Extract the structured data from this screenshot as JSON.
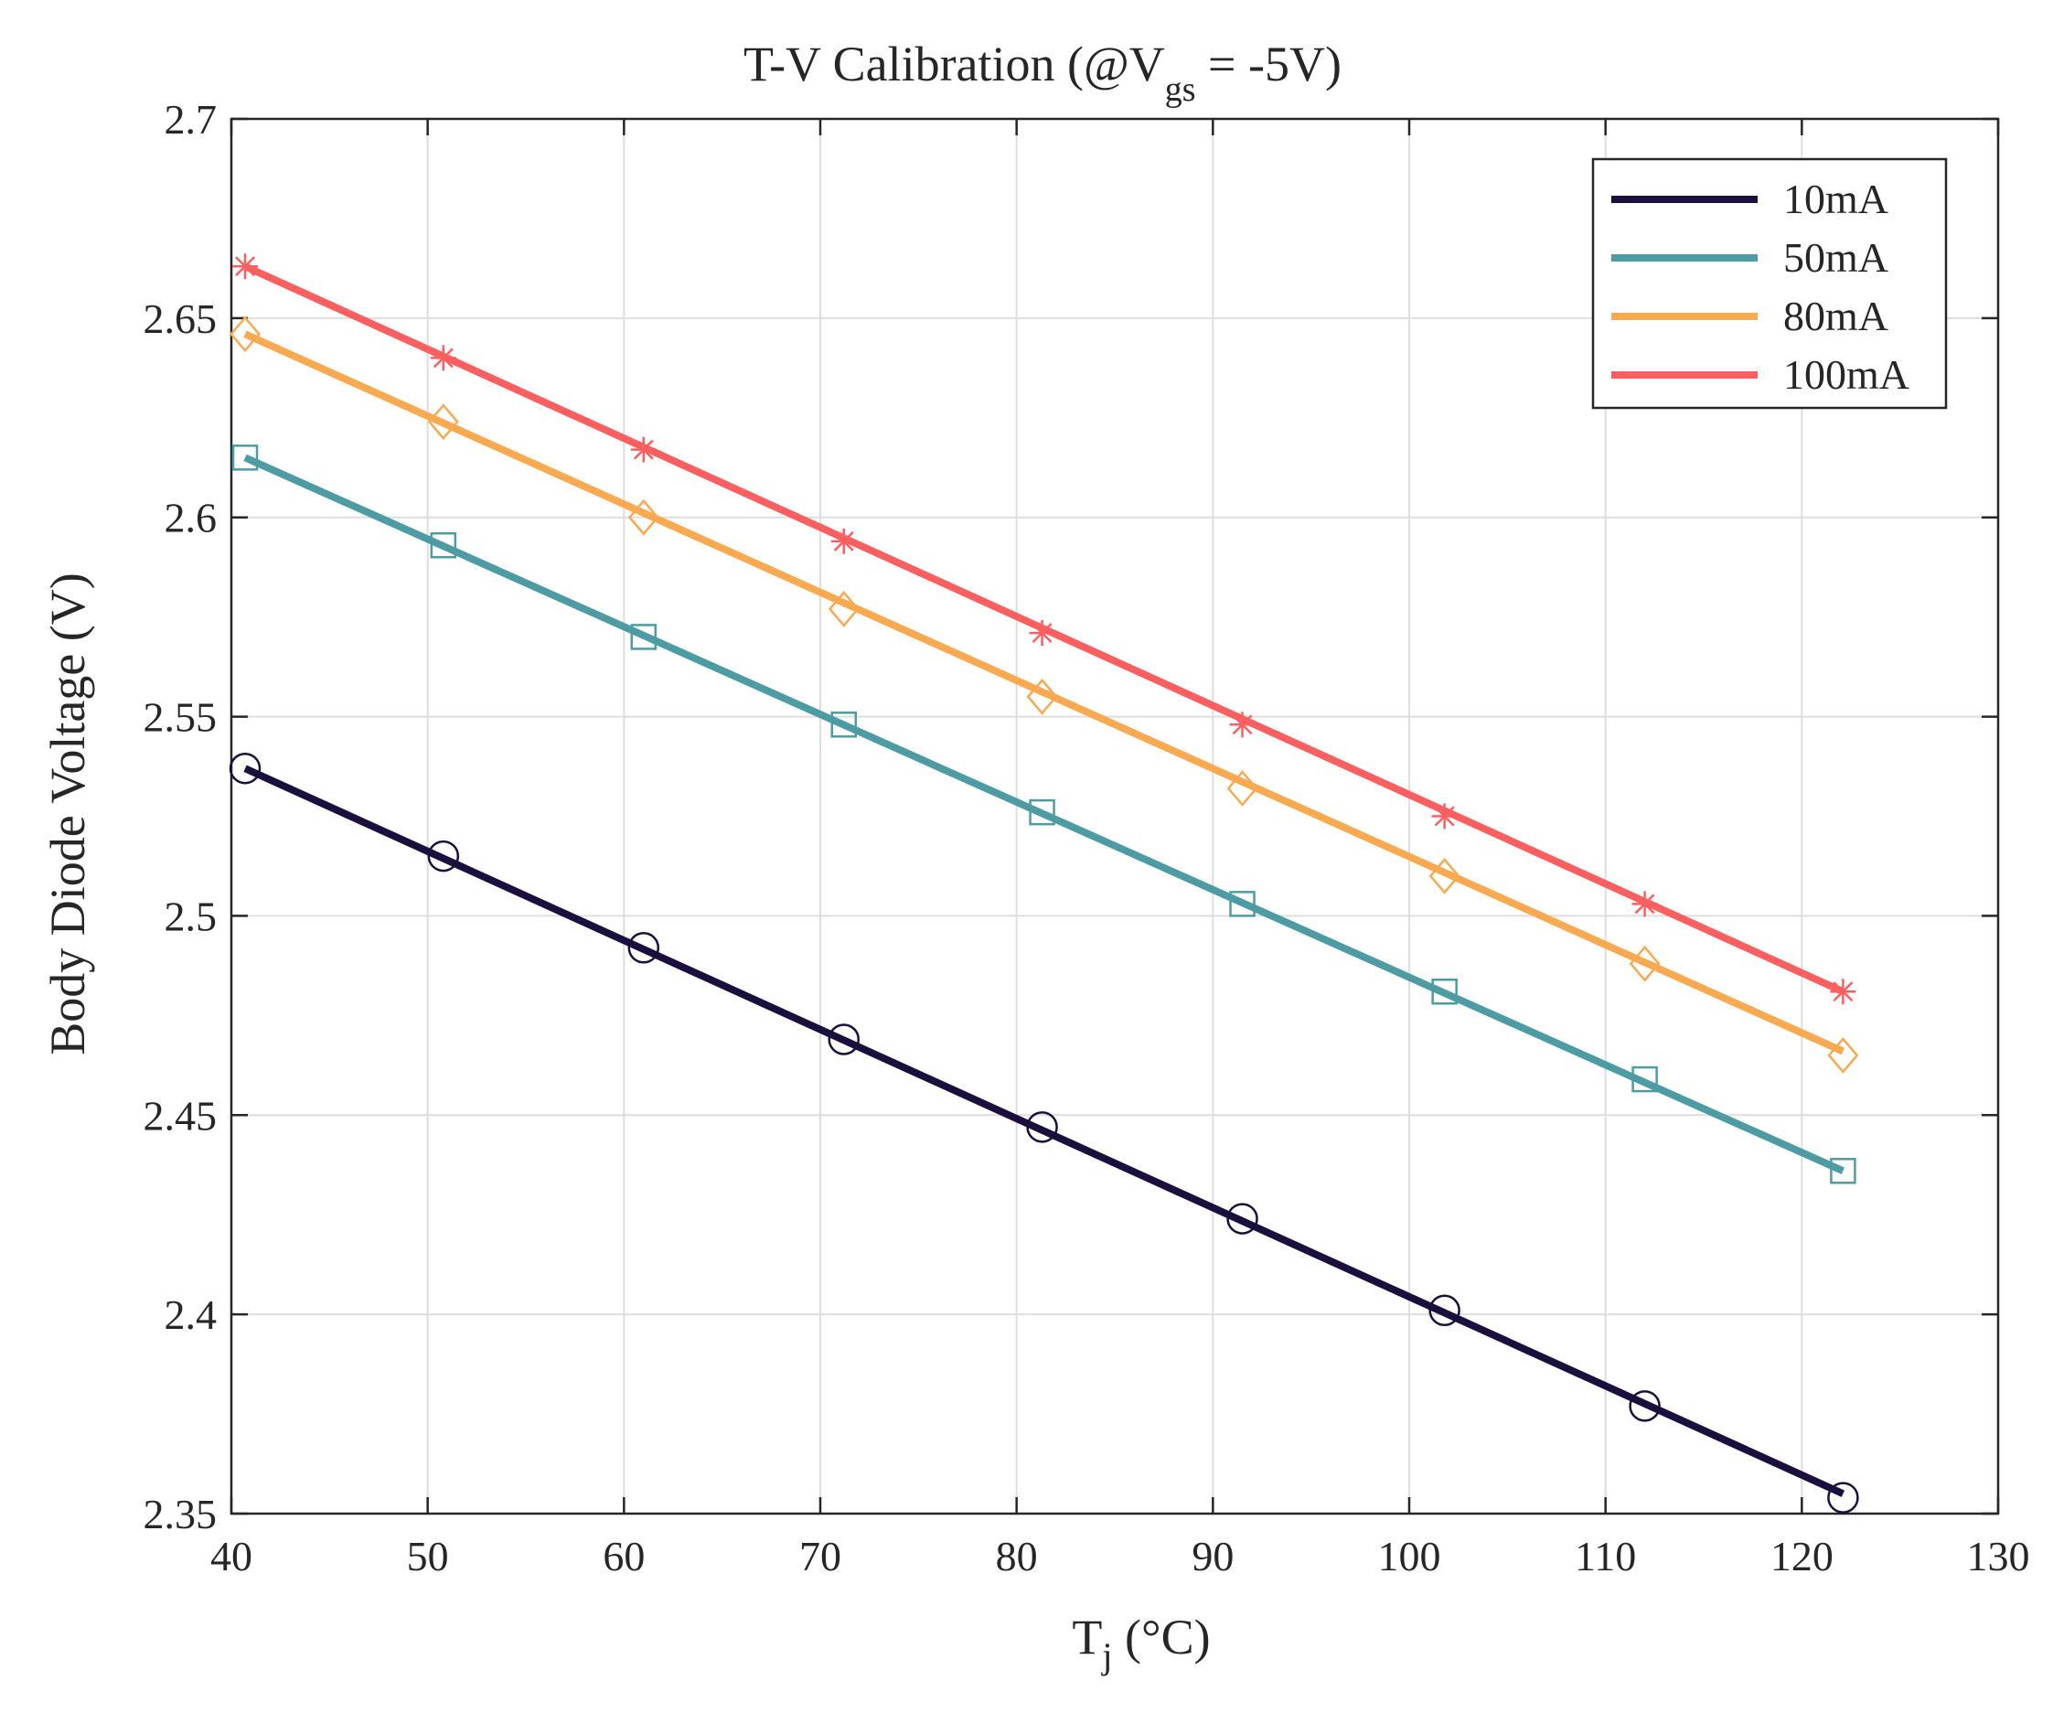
{
  "chart_data": {
    "type": "line",
    "title": {
      "prefix": "T-V Calibration (@V",
      "subscript": "gs",
      "suffix": " = -5V)"
    },
    "xlabel": {
      "main": "T",
      "subscript": "j",
      "suffix": " (°C)"
    },
    "ylabel": "Body Diode Voltage (V)",
    "xlim": [
      40,
      130
    ],
    "ylim": [
      2.35,
      2.7
    ],
    "xticks": [
      40,
      50,
      60,
      70,
      80,
      90,
      100,
      110,
      120,
      130
    ],
    "yticks": [
      2.35,
      2.4,
      2.45,
      2.5,
      2.55,
      2.6,
      2.65,
      2.7
    ],
    "xtick_labels": [
      "40",
      "50",
      "60",
      "70",
      "80",
      "90",
      "100",
      "110",
      "120",
      "130"
    ],
    "ytick_labels": [
      "2.35",
      "2.4",
      "2.45",
      "2.5",
      "2.55",
      "2.6",
      "2.65",
      "2.7"
    ],
    "grid": true,
    "legend_position": "top-right",
    "series": [
      {
        "name": "10mA",
        "color": "#1a0f3d",
        "marker": "circle",
        "x": [
          40.7,
          50.8,
          61.0,
          71.2,
          81.3,
          91.5,
          101.8,
          112.0,
          122.1
        ],
        "y": [
          2.537,
          2.515,
          2.492,
          2.469,
          2.447,
          2.424,
          2.401,
          2.377,
          2.354
        ],
        "fit": {
          "x": [
            40.7,
            122.1
          ],
          "y": [
            2.537,
            2.355
          ]
        }
      },
      {
        "name": "50mA",
        "color": "#4e9ca3",
        "marker": "square",
        "x": [
          40.7,
          50.8,
          61.0,
          71.2,
          81.3,
          91.5,
          101.8,
          112.0,
          122.1
        ],
        "y": [
          2.615,
          2.593,
          2.57,
          2.548,
          2.526,
          2.503,
          2.481,
          2.459,
          2.436
        ],
        "fit": {
          "x": [
            40.7,
            122.1
          ],
          "y": [
            2.615,
            2.436
          ]
        }
      },
      {
        "name": "80mA",
        "color": "#f9a94f",
        "marker": "diamond",
        "x": [
          40.7,
          50.8,
          61.0,
          71.2,
          81.3,
          91.5,
          101.8,
          112.0,
          122.1
        ],
        "y": [
          2.646,
          2.624,
          2.6,
          2.577,
          2.555,
          2.532,
          2.51,
          2.488,
          2.465
        ],
        "fit": {
          "x": [
            40.7,
            122.1
          ],
          "y": [
            2.646,
            2.466
          ]
        }
      },
      {
        "name": "100mA",
        "color": "#fc5f5f",
        "marker": "asterisk",
        "x": [
          40.7,
          50.8,
          61.0,
          71.2,
          81.3,
          91.5,
          101.8,
          112.0,
          122.1
        ],
        "y": [
          2.663,
          2.64,
          2.617,
          2.594,
          2.571,
          2.548,
          2.525,
          2.503,
          2.481
        ],
        "fit": {
          "x": [
            40.7,
            122.1
          ],
          "y": [
            2.663,
            2.481
          ]
        }
      }
    ]
  }
}
